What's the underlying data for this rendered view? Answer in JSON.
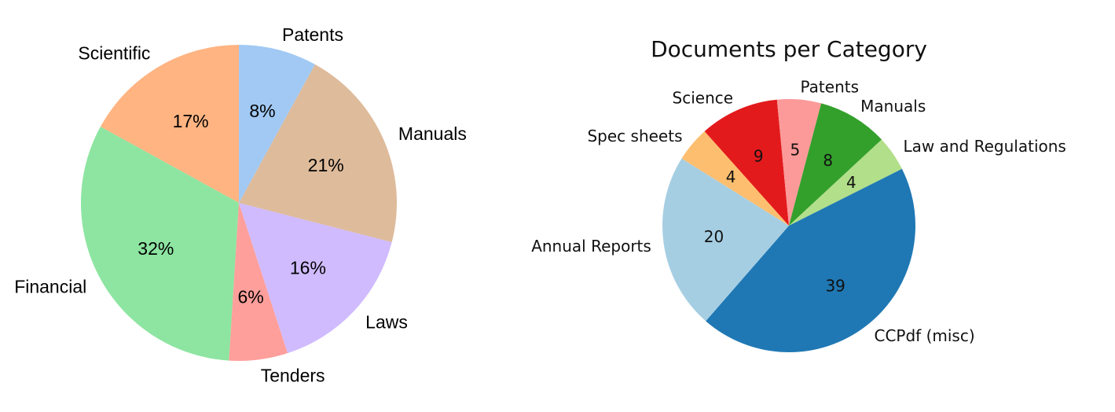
{
  "chart_data": [
    {
      "type": "pie",
      "title": "",
      "labels": [
        "Scientific",
        "Financial",
        "Tenders",
        "Laws",
        "Manuals",
        "Patents"
      ],
      "values": [
        17,
        32,
        6,
        16,
        21,
        8
      ],
      "value_labels": [
        "17%",
        "32%",
        "6%",
        "16%",
        "21%",
        "8%"
      ],
      "colors": [
        "#ffb482",
        "#8de5a1",
        "#ff9f9b",
        "#d0bbff",
        "#debb9b",
        "#a1c9f4"
      ],
      "start_angle_deg": 90,
      "direction": "counterclockwise"
    },
    {
      "type": "pie",
      "title": "Documents per Category",
      "labels": [
        "Spec sheets",
        "Science",
        "Patents",
        "Manuals",
        "Law and Regulations",
        "CCPdf (misc)",
        "Annual Reports"
      ],
      "values": [
        4,
        9,
        5,
        8,
        4,
        39,
        20
      ],
      "value_labels": [
        "4",
        "9",
        "5",
        "8",
        "4",
        "39",
        "20"
      ],
      "colors": [
        "#fdbf6f",
        "#e31a1c",
        "#fb9a99",
        "#33a02c",
        "#b2df8a",
        "#1f78b4",
        "#a6cee3"
      ],
      "start_angle_deg": 148,
      "direction": "clockwise"
    }
  ]
}
